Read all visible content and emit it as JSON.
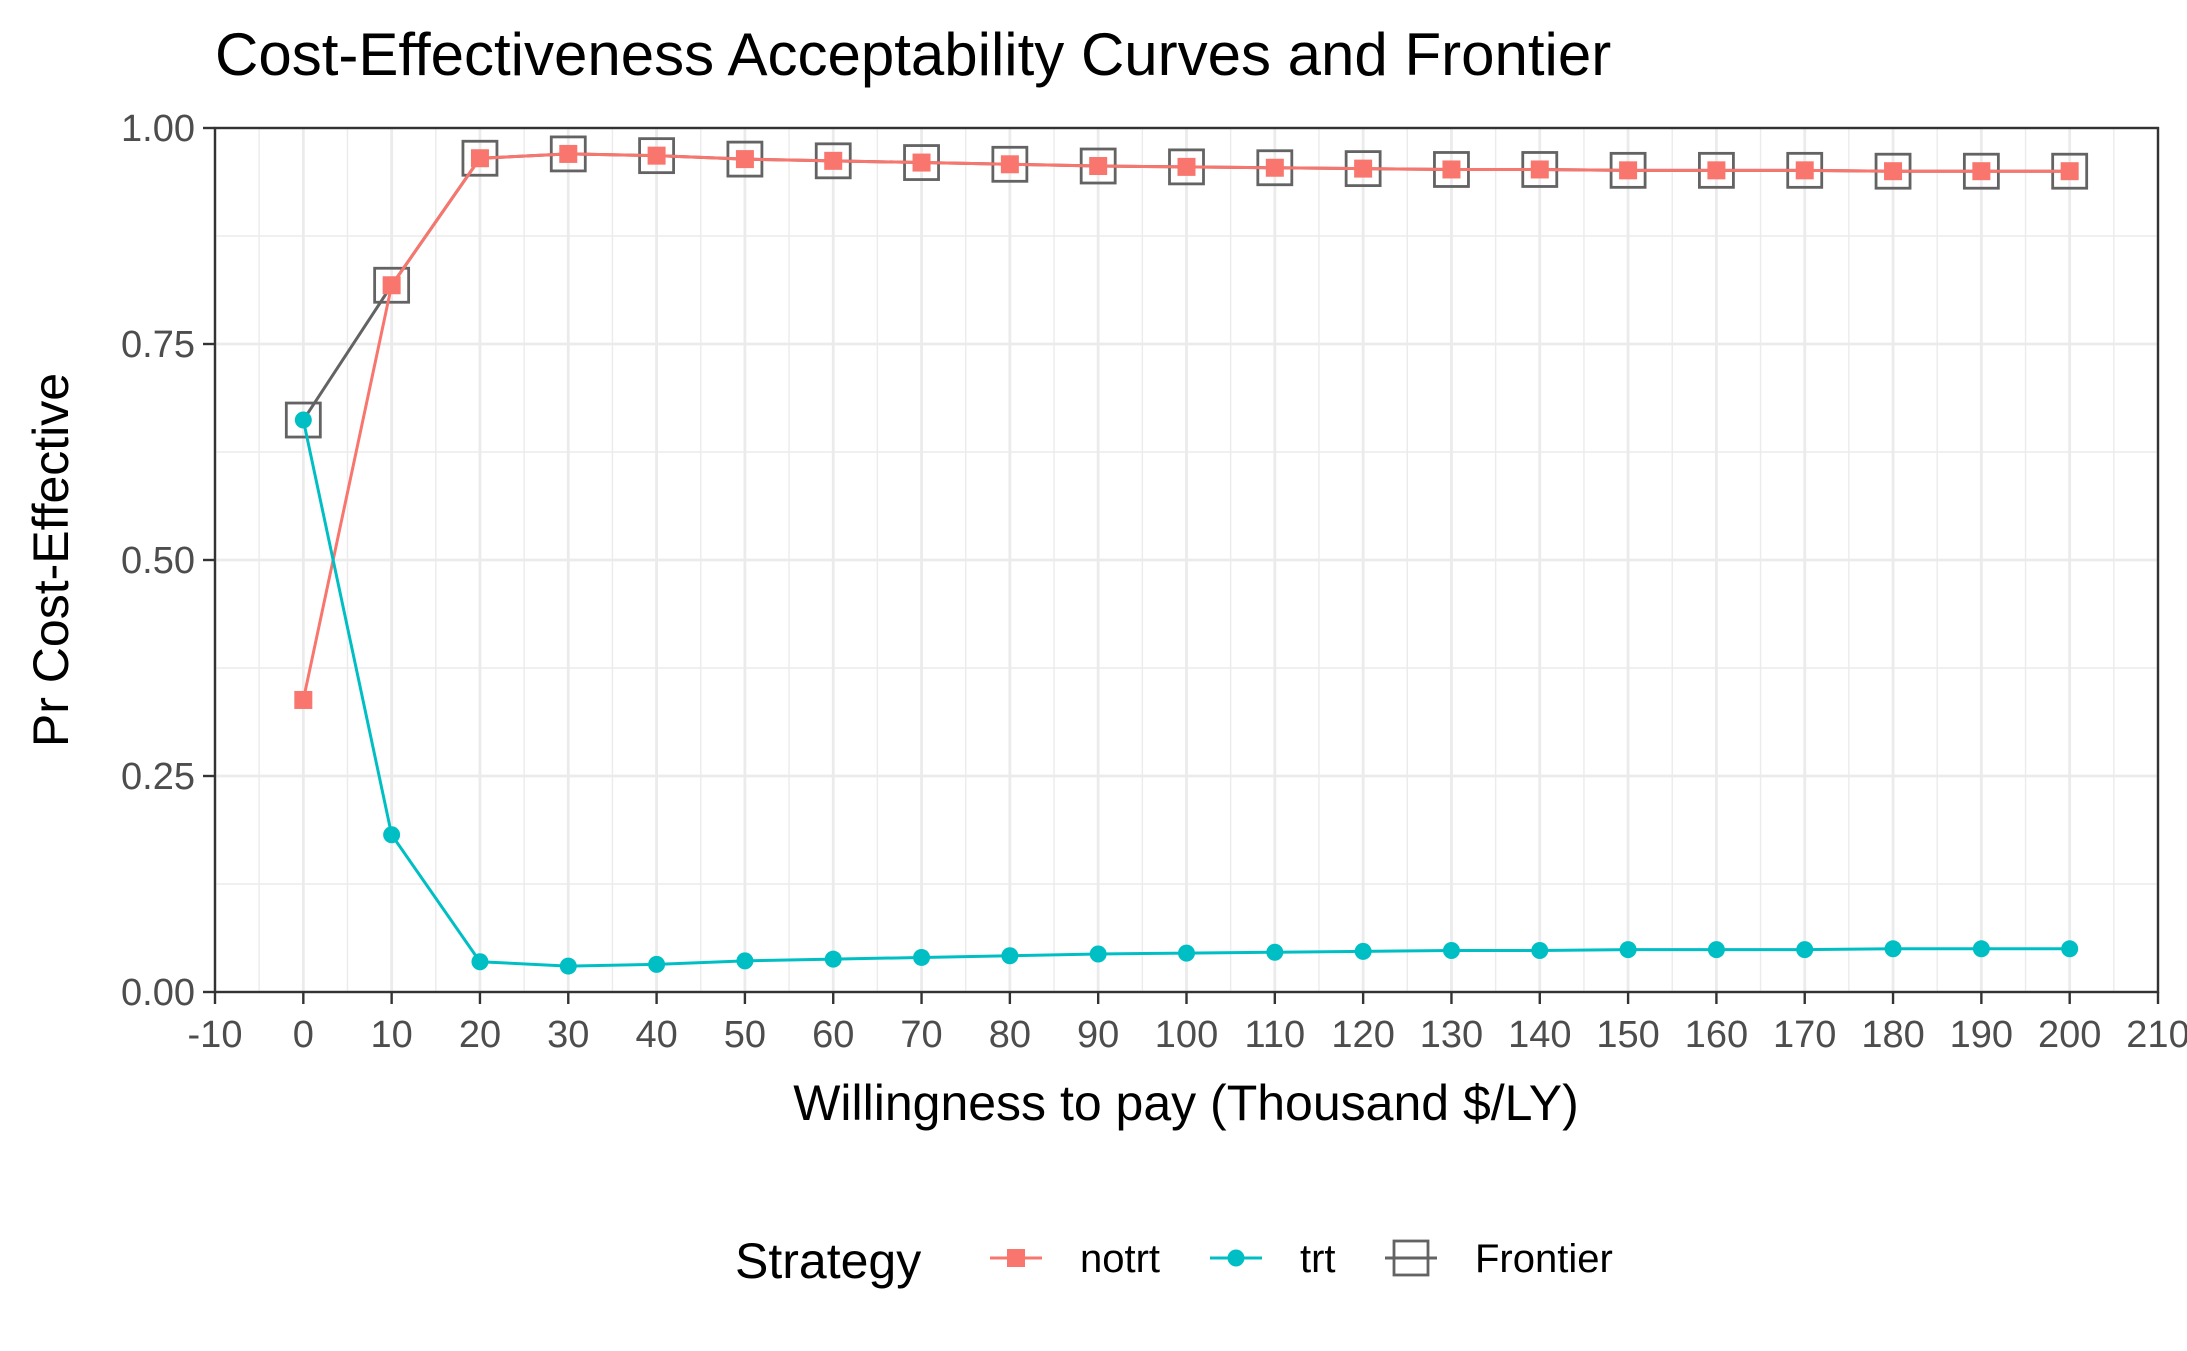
{
  "chart_data": {
    "type": "line",
    "title": "Cost-Effectiveness Acceptability Curves and Frontier",
    "xlabel": "Willingness to pay (Thousand $/LY)",
    "ylabel": "Pr Cost-Effective",
    "xlim": [
      -10,
      210
    ],
    "ylim": [
      0,
      1
    ],
    "x_ticks": [
      "-10",
      "0",
      "10",
      "20",
      "30",
      "40",
      "50",
      "60",
      "70",
      "80",
      "90",
      "100",
      "110",
      "120",
      "130",
      "140",
      "150",
      "160",
      "170",
      "180",
      "190",
      "200",
      "210"
    ],
    "y_ticks": [
      "0.00",
      "0.25",
      "0.50",
      "0.75",
      "1.00"
    ],
    "grid": true,
    "legend_position": "bottom",
    "legend_title": "Strategy",
    "x": [
      0,
      10,
      20,
      30,
      40,
      50,
      60,
      70,
      80,
      90,
      100,
      110,
      120,
      130,
      140,
      150,
      160,
      170,
      180,
      190,
      200
    ],
    "series": [
      {
        "name": "notrt",
        "color": "#F8766D",
        "marker": "square",
        "values": [
          0.338,
          0.818,
          0.965,
          0.97,
          0.968,
          0.964,
          0.962,
          0.96,
          0.958,
          0.956,
          0.955,
          0.954,
          0.953,
          0.952,
          0.952,
          0.951,
          0.951,
          0.951,
          0.95,
          0.95,
          0.95
        ]
      },
      {
        "name": "trt",
        "color": "#00BFC4",
        "marker": "circle",
        "values": [
          0.662,
          0.182,
          0.035,
          0.03,
          0.032,
          0.036,
          0.038,
          0.04,
          0.042,
          0.044,
          0.045,
          0.046,
          0.047,
          0.048,
          0.048,
          0.049,
          0.049,
          0.049,
          0.05,
          0.05,
          0.05
        ]
      },
      {
        "name": "Frontier",
        "color": "#636363",
        "marker": "open-square",
        "values": [
          0.662,
          0.818,
          0.965,
          0.97,
          0.968,
          0.964,
          0.962,
          0.96,
          0.958,
          0.956,
          0.955,
          0.954,
          0.953,
          0.952,
          0.952,
          0.951,
          0.951,
          0.951,
          0.95,
          0.95,
          0.95
        ]
      }
    ]
  }
}
